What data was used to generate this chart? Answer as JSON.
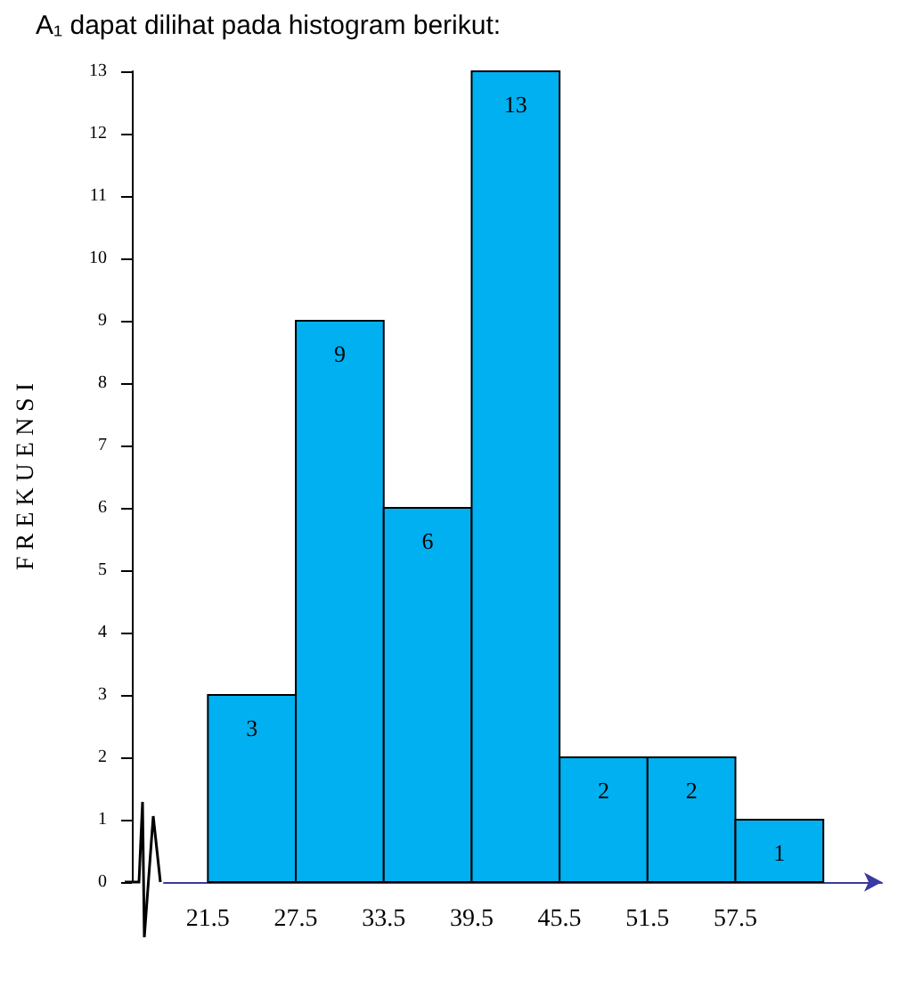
{
  "chart_data": {
    "type": "histogram",
    "title": "A₁ dapat dilihat pada histogram berikut:",
    "ylabel": "F R E K U E N S I",
    "bins": [
      21.5,
      27.5,
      33.5,
      39.5,
      45.5,
      51.5,
      57.5,
      63.5
    ],
    "values": [
      3,
      9,
      6,
      13,
      2,
      2,
      1
    ],
    "color": "#00b0f0",
    "xlim": [
      18.5,
      67.5
    ],
    "xticks": [
      21.5,
      27.5,
      33.5,
      39.5,
      45.5,
      51.5,
      57.5
    ],
    "ylim": [
      0,
      13
    ],
    "yticks": [
      0,
      1,
      2,
      3,
      4,
      5,
      6,
      7,
      8,
      9,
      10,
      11,
      12,
      13
    ],
    "data_labels": true
  }
}
